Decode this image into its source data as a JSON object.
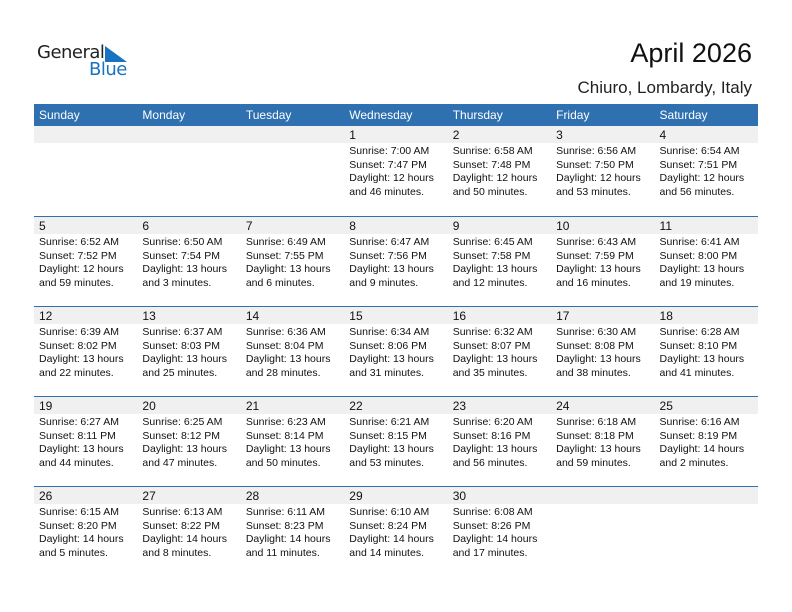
{
  "logo": {
    "text1": "General",
    "text2": "Blue"
  },
  "header": {
    "title": "April 2026",
    "location": "Chiuro, Lombardy, Italy"
  },
  "colors": {
    "accent": "#2e70b0",
    "band": "#f0f0f0"
  },
  "days": [
    "Sunday",
    "Monday",
    "Tuesday",
    "Wednesday",
    "Thursday",
    "Friday",
    "Saturday"
  ],
  "weeks": [
    [
      null,
      null,
      null,
      {
        "day": "1",
        "sunrise": "Sunrise: 7:00 AM",
        "sunset": "Sunset: 7:47 PM",
        "daylight1": "Daylight: 12 hours",
        "daylight2": "and 46 minutes."
      },
      {
        "day": "2",
        "sunrise": "Sunrise: 6:58 AM",
        "sunset": "Sunset: 7:48 PM",
        "daylight1": "Daylight: 12 hours",
        "daylight2": "and 50 minutes."
      },
      {
        "day": "3",
        "sunrise": "Sunrise: 6:56 AM",
        "sunset": "Sunset: 7:50 PM",
        "daylight1": "Daylight: 12 hours",
        "daylight2": "and 53 minutes."
      },
      {
        "day": "4",
        "sunrise": "Sunrise: 6:54 AM",
        "sunset": "Sunset: 7:51 PM",
        "daylight1": "Daylight: 12 hours",
        "daylight2": "and 56 minutes."
      }
    ],
    [
      {
        "day": "5",
        "sunrise": "Sunrise: 6:52 AM",
        "sunset": "Sunset: 7:52 PM",
        "daylight1": "Daylight: 12 hours",
        "daylight2": "and 59 minutes."
      },
      {
        "day": "6",
        "sunrise": "Sunrise: 6:50 AM",
        "sunset": "Sunset: 7:54 PM",
        "daylight1": "Daylight: 13 hours",
        "daylight2": "and 3 minutes."
      },
      {
        "day": "7",
        "sunrise": "Sunrise: 6:49 AM",
        "sunset": "Sunset: 7:55 PM",
        "daylight1": "Daylight: 13 hours",
        "daylight2": "and 6 minutes."
      },
      {
        "day": "8",
        "sunrise": "Sunrise: 6:47 AM",
        "sunset": "Sunset: 7:56 PM",
        "daylight1": "Daylight: 13 hours",
        "daylight2": "and 9 minutes."
      },
      {
        "day": "9",
        "sunrise": "Sunrise: 6:45 AM",
        "sunset": "Sunset: 7:58 PM",
        "daylight1": "Daylight: 13 hours",
        "daylight2": "and 12 minutes."
      },
      {
        "day": "10",
        "sunrise": "Sunrise: 6:43 AM",
        "sunset": "Sunset: 7:59 PM",
        "daylight1": "Daylight: 13 hours",
        "daylight2": "and 16 minutes."
      },
      {
        "day": "11",
        "sunrise": "Sunrise: 6:41 AM",
        "sunset": "Sunset: 8:00 PM",
        "daylight1": "Daylight: 13 hours",
        "daylight2": "and 19 minutes."
      }
    ],
    [
      {
        "day": "12",
        "sunrise": "Sunrise: 6:39 AM",
        "sunset": "Sunset: 8:02 PM",
        "daylight1": "Daylight: 13 hours",
        "daylight2": "and 22 minutes."
      },
      {
        "day": "13",
        "sunrise": "Sunrise: 6:37 AM",
        "sunset": "Sunset: 8:03 PM",
        "daylight1": "Daylight: 13 hours",
        "daylight2": "and 25 minutes."
      },
      {
        "day": "14",
        "sunrise": "Sunrise: 6:36 AM",
        "sunset": "Sunset: 8:04 PM",
        "daylight1": "Daylight: 13 hours",
        "daylight2": "and 28 minutes."
      },
      {
        "day": "15",
        "sunrise": "Sunrise: 6:34 AM",
        "sunset": "Sunset: 8:06 PM",
        "daylight1": "Daylight: 13 hours",
        "daylight2": "and 31 minutes."
      },
      {
        "day": "16",
        "sunrise": "Sunrise: 6:32 AM",
        "sunset": "Sunset: 8:07 PM",
        "daylight1": "Daylight: 13 hours",
        "daylight2": "and 35 minutes."
      },
      {
        "day": "17",
        "sunrise": "Sunrise: 6:30 AM",
        "sunset": "Sunset: 8:08 PM",
        "daylight1": "Daylight: 13 hours",
        "daylight2": "and 38 minutes."
      },
      {
        "day": "18",
        "sunrise": "Sunrise: 6:28 AM",
        "sunset": "Sunset: 8:10 PM",
        "daylight1": "Daylight: 13 hours",
        "daylight2": "and 41 minutes."
      }
    ],
    [
      {
        "day": "19",
        "sunrise": "Sunrise: 6:27 AM",
        "sunset": "Sunset: 8:11 PM",
        "daylight1": "Daylight: 13 hours",
        "daylight2": "and 44 minutes."
      },
      {
        "day": "20",
        "sunrise": "Sunrise: 6:25 AM",
        "sunset": "Sunset: 8:12 PM",
        "daylight1": "Daylight: 13 hours",
        "daylight2": "and 47 minutes."
      },
      {
        "day": "21",
        "sunrise": "Sunrise: 6:23 AM",
        "sunset": "Sunset: 8:14 PM",
        "daylight1": "Daylight: 13 hours",
        "daylight2": "and 50 minutes."
      },
      {
        "day": "22",
        "sunrise": "Sunrise: 6:21 AM",
        "sunset": "Sunset: 8:15 PM",
        "daylight1": "Daylight: 13 hours",
        "daylight2": "and 53 minutes."
      },
      {
        "day": "23",
        "sunrise": "Sunrise: 6:20 AM",
        "sunset": "Sunset: 8:16 PM",
        "daylight1": "Daylight: 13 hours",
        "daylight2": "and 56 minutes."
      },
      {
        "day": "24",
        "sunrise": "Sunrise: 6:18 AM",
        "sunset": "Sunset: 8:18 PM",
        "daylight1": "Daylight: 13 hours",
        "daylight2": "and 59 minutes."
      },
      {
        "day": "25",
        "sunrise": "Sunrise: 6:16 AM",
        "sunset": "Sunset: 8:19 PM",
        "daylight1": "Daylight: 14 hours",
        "daylight2": "and 2 minutes."
      }
    ],
    [
      {
        "day": "26",
        "sunrise": "Sunrise: 6:15 AM",
        "sunset": "Sunset: 8:20 PM",
        "daylight1": "Daylight: 14 hours",
        "daylight2": "and 5 minutes."
      },
      {
        "day": "27",
        "sunrise": "Sunrise: 6:13 AM",
        "sunset": "Sunset: 8:22 PM",
        "daylight1": "Daylight: 14 hours",
        "daylight2": "and 8 minutes."
      },
      {
        "day": "28",
        "sunrise": "Sunrise: 6:11 AM",
        "sunset": "Sunset: 8:23 PM",
        "daylight1": "Daylight: 14 hours",
        "daylight2": "and 11 minutes."
      },
      {
        "day": "29",
        "sunrise": "Sunrise: 6:10 AM",
        "sunset": "Sunset: 8:24 PM",
        "daylight1": "Daylight: 14 hours",
        "daylight2": "and 14 minutes."
      },
      {
        "day": "30",
        "sunrise": "Sunrise: 6:08 AM",
        "sunset": "Sunset: 8:26 PM",
        "daylight1": "Daylight: 14 hours",
        "daylight2": "and 17 minutes."
      },
      null,
      null
    ]
  ]
}
